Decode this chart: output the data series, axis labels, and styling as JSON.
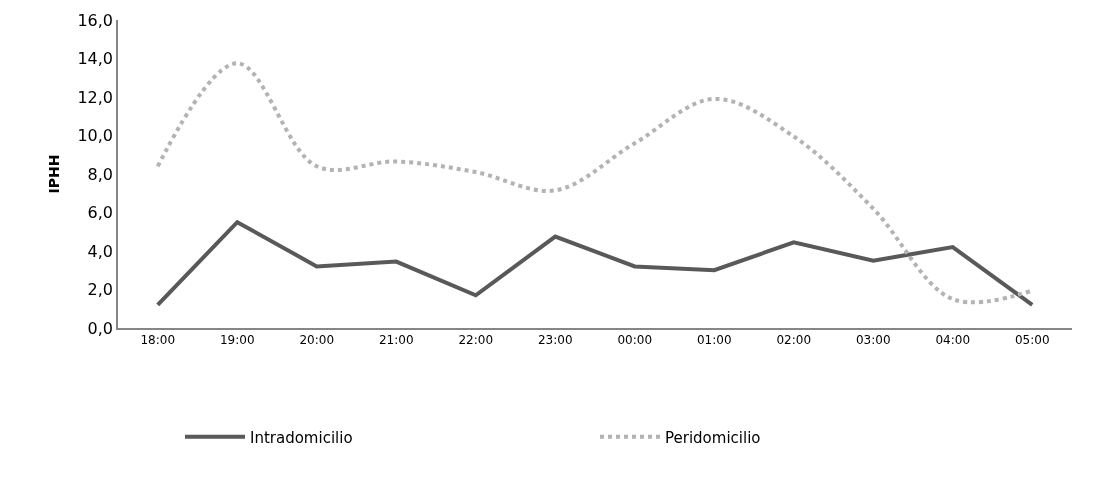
{
  "chart_data": {
    "type": "line",
    "ylabel": "IPHH",
    "categories": [
      "18:00",
      "19:00",
      "20:00",
      "21:00",
      "22:00",
      "23:00",
      "00:00",
      "01:00",
      "02:00",
      "03:00",
      "04:00",
      "05:00"
    ],
    "series": [
      {
        "name": "Intradomicilio",
        "color": "#595959",
        "line_style": "solid",
        "values": [
          1.2,
          5.5,
          3.2,
          3.45,
          1.7,
          4.75,
          3.2,
          3.0,
          4.45,
          3.5,
          4.2,
          1.2
        ]
      },
      {
        "name": "Peridomicilio",
        "color": "#b3b3b3",
        "line_style": "dotted",
        "values": [
          8.4,
          13.75,
          8.4,
          8.65,
          8.1,
          7.15,
          9.6,
          11.9,
          9.95,
          6.2,
          1.5,
          1.95
        ]
      }
    ],
    "ylim": [
      0,
      16
    ],
    "yticks": [
      {
        "value": 0,
        "label": "0,0"
      },
      {
        "value": 2,
        "label": "2,0"
      },
      {
        "value": 4,
        "label": "4,0"
      },
      {
        "value": 6,
        "label": "6,0"
      },
      {
        "value": 8,
        "label": "8,0"
      },
      {
        "value": 10,
        "label": "10,0"
      },
      {
        "value": 12,
        "label": "12,0"
      },
      {
        "value": 14,
        "label": "14,0"
      },
      {
        "value": 16,
        "label": "16,0"
      }
    ],
    "legend": "bottom",
    "marker": "none"
  }
}
